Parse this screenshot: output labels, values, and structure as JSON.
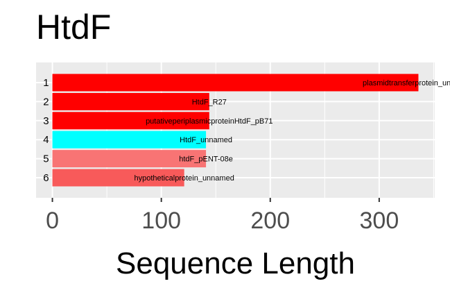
{
  "chart_data": {
    "type": "bar",
    "orientation": "horizontal",
    "title": "HtdF",
    "xlabel": "Sequence Length",
    "ylabel": "",
    "xlim": [
      -15,
      351
    ],
    "xticks": [
      0,
      100,
      200,
      300
    ],
    "grid": true,
    "legend": "none",
    "bars": [
      {
        "rank": "1",
        "label": "plasmidtransferprotein_unnamed",
        "value": 336,
        "color": "#ff0000"
      },
      {
        "rank": "2",
        "label": "HtdF_R27",
        "value": 144,
        "color": "#ff0000"
      },
      {
        "rank": "3",
        "label": "putativeperiplasmicproteinHtdF_pB71",
        "value": 144,
        "color": "#ff0000"
      },
      {
        "rank": "4",
        "label": "HtdF_unnamed",
        "value": 141,
        "color": "#00ffff"
      },
      {
        "rank": "5",
        "label": "htdF_pENT-08e",
        "value": 141,
        "color": "#f87474"
      },
      {
        "rank": "6",
        "label": "hypotheticalprotein_unnamed",
        "value": 121,
        "color": "#f85a5a"
      }
    ]
  }
}
